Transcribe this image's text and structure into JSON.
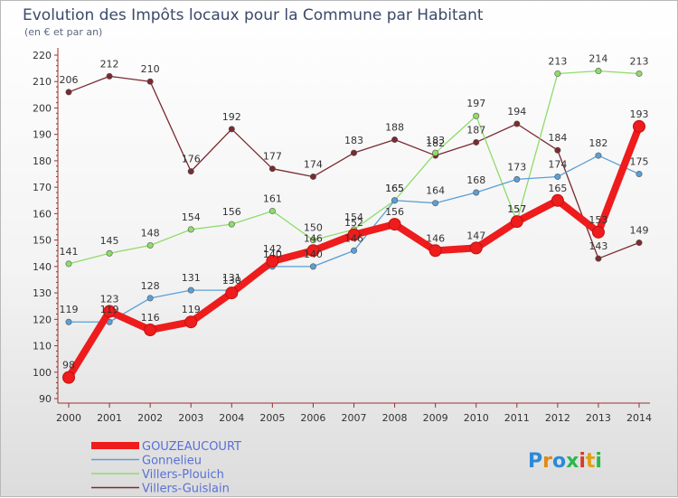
{
  "chart_data": {
    "type": "line",
    "title": "Evolution des Impôts locaux pour la Commune par Habitant",
    "subtitle": "(en € et par an)",
    "categories": [
      "2000",
      "2001",
      "2002",
      "2003",
      "2004",
      "2005",
      "2006",
      "2007",
      "2008",
      "2009",
      "2010",
      "2011",
      "2012",
      "2013",
      "2014"
    ],
    "ylim": [
      90,
      220
    ],
    "yticks": [
      90,
      100,
      110,
      120,
      130,
      140,
      150,
      160,
      170,
      180,
      190,
      200,
      210,
      220
    ],
    "grid": false,
    "legend_position": "bottom-left",
    "series": [
      {
        "name": "Villers-Guislain",
        "color": "#7a2a30",
        "values": [
          206,
          212,
          210,
          176,
          192,
          177,
          174,
          183,
          188,
          182,
          187,
          194,
          184,
          143,
          149
        ]
      },
      {
        "name": "Villers-Plouich",
        "color": "#8fdc6a",
        "values": [
          141,
          145,
          148,
          154,
          156,
          161,
          150,
          154,
          165,
          183,
          197,
          157,
          213,
          214,
          213
        ]
      },
      {
        "name": "Gonnelieu",
        "color": "#5a9fd6",
        "values": [
          119,
          119,
          128,
          131,
          131,
          140,
          140,
          146,
          165,
          164,
          168,
          173,
          174,
          182,
          175
        ]
      },
      {
        "name": "GOUZEAUCOURT",
        "color": "#ee1c1c",
        "values": [
          98,
          123,
          116,
          119,
          130,
          142,
          146,
          152,
          156,
          146,
          147,
          157,
          165,
          153,
          193
        ]
      }
    ]
  },
  "brand": {
    "text": "Proxiti",
    "letters": [
      "P",
      "r",
      "o",
      "x",
      "i",
      "t",
      "i"
    ]
  }
}
